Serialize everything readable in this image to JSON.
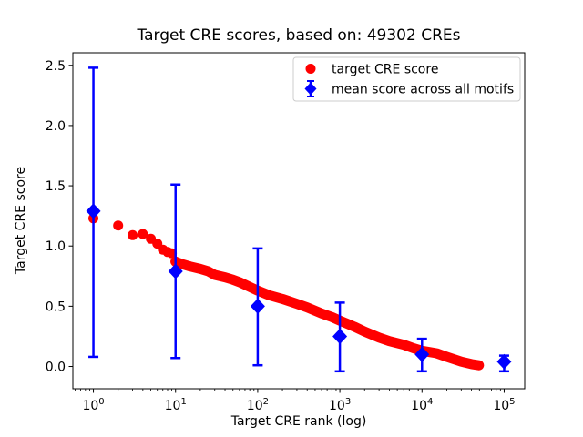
{
  "figure": {
    "title": "Target CRE scores, based on: 49302 CREs"
  },
  "chart_data": {
    "type": "scatter",
    "title": "Target CRE scores, based on: 49302 CREs",
    "xlabel": "Target CRE rank (log)",
    "ylabel": "Target CRE score",
    "x_scale": "log10",
    "xlim_log10": [
      -0.25,
      5.25
    ],
    "ylim": [
      -0.185,
      2.604
    ],
    "x_major_ticks": [
      1,
      10,
      100,
      1000,
      10000,
      100000
    ],
    "y_major_ticks": [
      0.0,
      0.5,
      1.0,
      1.5,
      2.0,
      2.5
    ],
    "grid": false,
    "legend_position": "upper right",
    "colors": {
      "target": "#ff0000",
      "mean": "#0000ff",
      "legend_border": "#cccccc"
    },
    "series": [
      {
        "name": "target CRE score",
        "type": "scatter",
        "marker": "circle",
        "color": "#ff0000",
        "points": [
          [
            1,
            1.23
          ],
          [
            2,
            1.17
          ],
          [
            3,
            1.09
          ],
          [
            4,
            1.1
          ],
          [
            5,
            1.06
          ],
          [
            6,
            1.02
          ],
          [
            7,
            0.97
          ],
          [
            8,
            0.95
          ],
          [
            9,
            0.94
          ],
          [
            10,
            0.87
          ],
          [
            12,
            0.85
          ],
          [
            15,
            0.83
          ],
          [
            20,
            0.81
          ],
          [
            25,
            0.79
          ],
          [
            30,
            0.76
          ],
          [
            40,
            0.74
          ],
          [
            50,
            0.72
          ],
          [
            60,
            0.7
          ],
          [
            80,
            0.66
          ],
          [
            100,
            0.63
          ],
          [
            140,
            0.59
          ],
          [
            200,
            0.56
          ],
          [
            300,
            0.52
          ],
          [
            400,
            0.49
          ],
          [
            600,
            0.44
          ],
          [
            800,
            0.41
          ],
          [
            1000,
            0.38
          ],
          [
            1500,
            0.33
          ],
          [
            2000,
            0.29
          ],
          [
            3000,
            0.24
          ],
          [
            4000,
            0.21
          ],
          [
            6000,
            0.18
          ],
          [
            8000,
            0.15
          ],
          [
            10000,
            0.13
          ],
          [
            15000,
            0.11
          ],
          [
            20000,
            0.08
          ],
          [
            30000,
            0.04
          ],
          [
            40000,
            0.02
          ],
          [
            49302,
            0.01
          ]
        ]
      },
      {
        "name": "mean score across all motifs",
        "type": "errorbar",
        "marker": "diamond",
        "color": "#0000ff",
        "points": [
          {
            "x": 1,
            "mean": 1.29,
            "lo": 0.08,
            "hi": 2.48
          },
          {
            "x": 10,
            "mean": 0.79,
            "lo": 0.07,
            "hi": 1.51
          },
          {
            "x": 100,
            "mean": 0.5,
            "lo": 0.01,
            "hi": 0.98
          },
          {
            "x": 1000,
            "mean": 0.25,
            "lo": -0.04,
            "hi": 0.53
          },
          {
            "x": 10000,
            "mean": 0.1,
            "lo": -0.04,
            "hi": 0.23
          },
          {
            "x": 100000,
            "mean": 0.04,
            "lo": -0.04,
            "hi": 0.09
          }
        ]
      }
    ]
  }
}
